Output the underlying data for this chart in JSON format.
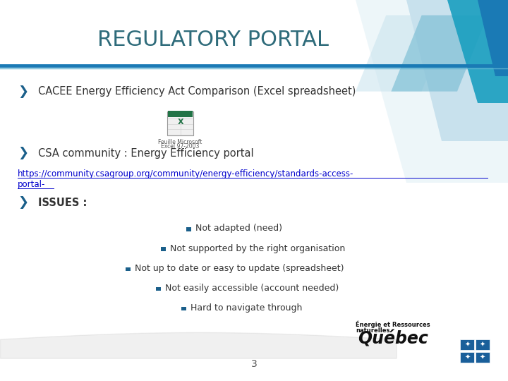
{
  "title": "REGULATORY PORTAL",
  "title_color": "#2e6b7a",
  "bg_color": "#ffffff",
  "header_bar_color": "#1a7ab5",
  "bullet_color": "#1a5f8a",
  "bullet1": "CACEE Energy Efficiency Act Comparison (Excel spreadsheet)",
  "bullet2": "CSA community : Energy Efficiency portal",
  "link_line1": "https://community.csagroup.org/community/energy-efficiency/standards-access-",
  "link_line2": "portal-",
  "link_color": "#0000cc",
  "bullet3": "ISSUES :",
  "issues": [
    "Not adapted (need)",
    "Not supported by the right organisation",
    "Not up to date or easy to update (spreadsheet)",
    "Not easily accessible (account needed)",
    "Hard to navigate through"
  ],
  "issue_indents": [
    0.38,
    0.33,
    0.26,
    0.32,
    0.37
  ],
  "page_number": "3",
  "footer_text_line1": "Énergie et Ressources",
  "footer_text_line2": "naturelles",
  "footer_text_line3": "Québec",
  "excel_label1": "Feuille Microsoft",
  "excel_label2": "Excel 97-2003",
  "arrow_color": "#1a5f8a",
  "text_color": "#333333"
}
